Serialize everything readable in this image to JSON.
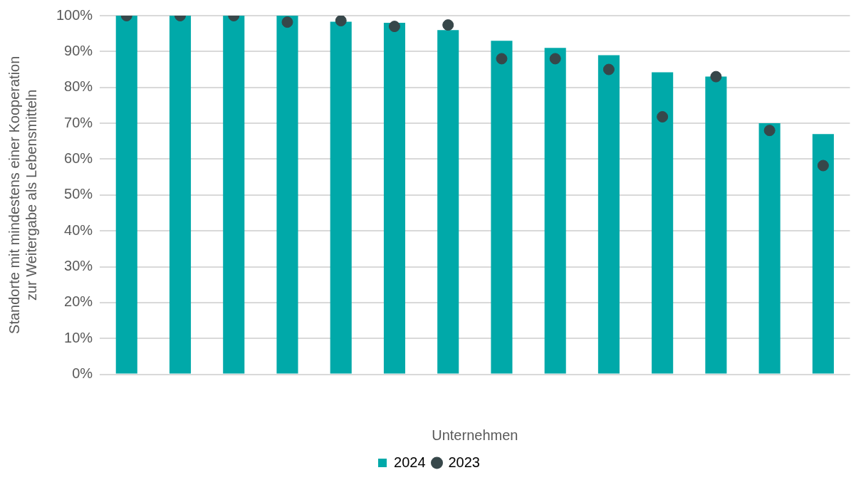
{
  "chart_data": {
    "type": "bar",
    "xlabel": "Unternehmen",
    "ylabel": "Standorte mit mindestens einer Kooperation\nzur Weitergabe als Lebensmitteln",
    "categories": [
      null,
      null,
      null,
      null,
      null,
      null,
      null,
      null,
      null,
      null,
      null,
      null,
      null,
      null
    ],
    "series": [
      {
        "name": "2024",
        "type": "bar",
        "color": "#00a9a9",
        "values": [
          100,
          100,
          100,
          100,
          98.3,
          98,
          96,
          93,
          91,
          89,
          84.2,
          83,
          70,
          67
        ]
      },
      {
        "name": "2023",
        "type": "scatter",
        "color": "#37474a",
        "values": [
          100,
          100,
          100,
          98.2,
          98.6,
          97,
          97.4,
          88,
          88,
          85,
          71.8,
          83,
          68,
          58.2
        ]
      }
    ],
    "ylim": [
      0,
      100
    ],
    "yticks": [
      {
        "value": 0,
        "label": "0%"
      },
      {
        "value": 10,
        "label": "10%"
      },
      {
        "value": 20,
        "label": "20%"
      },
      {
        "value": 30,
        "label": "30%"
      },
      {
        "value": 40,
        "label": "40%"
      },
      {
        "value": 50,
        "label": "50%"
      },
      {
        "value": 60,
        "label": "60%"
      },
      {
        "value": 70,
        "label": "70%"
      },
      {
        "value": 80,
        "label": "80%"
      },
      {
        "value": 90,
        "label": "90%"
      },
      {
        "value": 100,
        "label": "100%"
      }
    ],
    "grid": "y",
    "legend": "bottom",
    "marker": "circle"
  }
}
